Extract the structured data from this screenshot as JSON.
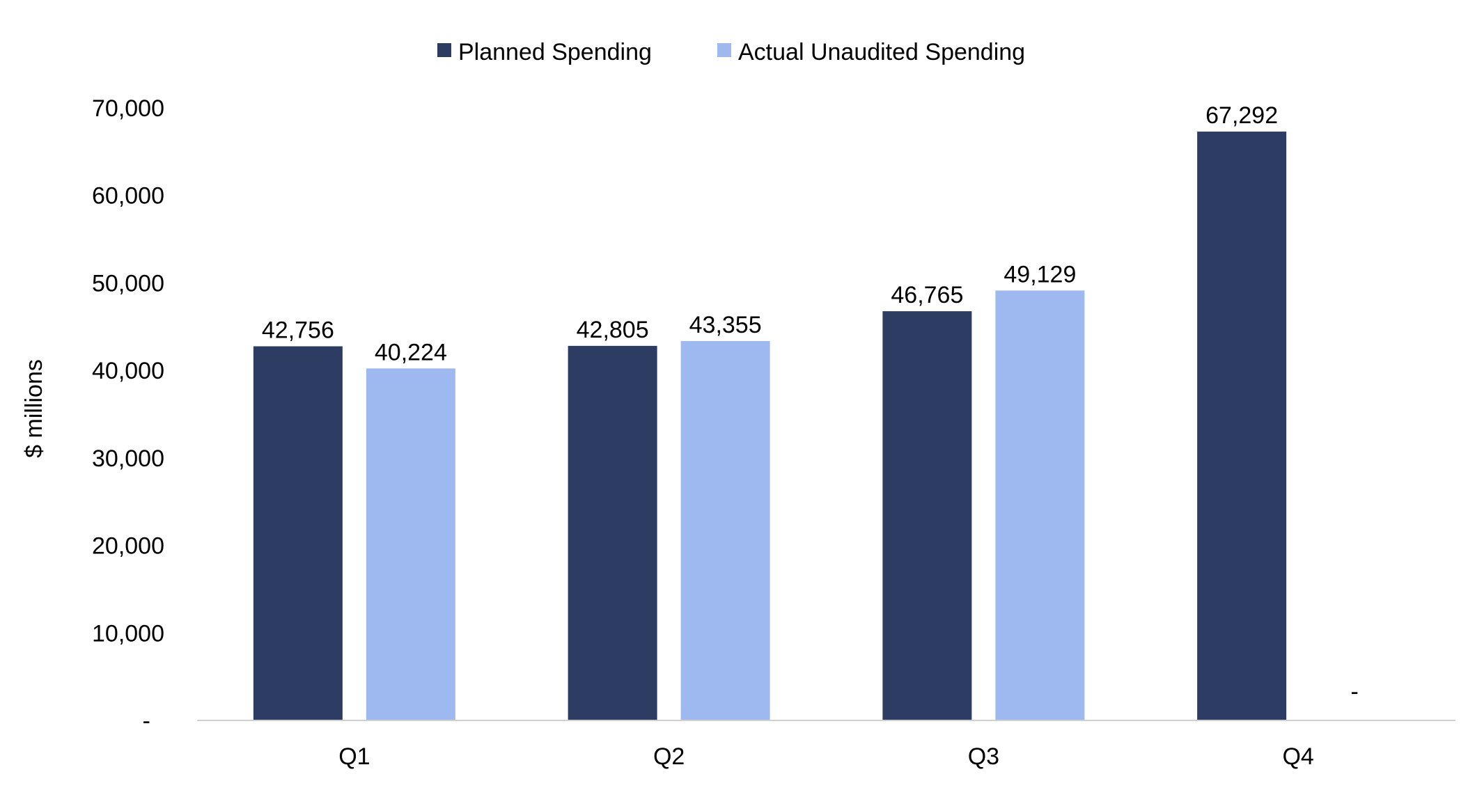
{
  "chart_data": {
    "type": "bar",
    "title": "",
    "xlabel": "",
    "ylabel": "$ millions",
    "categories": [
      "Q1",
      "Q2",
      "Q3",
      "Q4"
    ],
    "series": [
      {
        "name": "Planned Spending",
        "color": "#2d3c63",
        "values": [
          42756,
          42805,
          46765,
          67292
        ],
        "labels": [
          "42,756",
          "42,805",
          "46,765",
          "67,292"
        ]
      },
      {
        "name": "Actual Unaudited Spending",
        "color": "#9db9f0",
        "values": [
          40224,
          43355,
          49129,
          0
        ],
        "labels": [
          "40,224",
          "43,355",
          "49,129",
          "-"
        ]
      }
    ],
    "ylim": [
      0,
      70000
    ],
    "yticks": [
      0,
      10000,
      20000,
      30000,
      40000,
      50000,
      60000,
      70000
    ],
    "ytick_labels": [
      "-",
      "10,000",
      "20,000",
      "30,000",
      "40,000",
      "50,000",
      "60,000",
      "70,000"
    ],
    "grid": false,
    "legend_position": "top-center"
  }
}
